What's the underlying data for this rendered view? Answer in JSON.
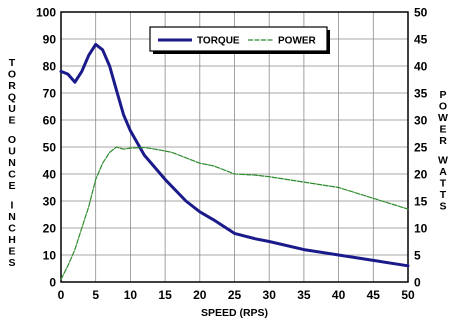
{
  "chart_data": {
    "type": "line",
    "title": "",
    "xlabel": "SPEED (RPS)",
    "ylabel_left": "TORQUE OUNCE INCHES",
    "ylabel_right": "POWER WATTS",
    "xlim": [
      0,
      50
    ],
    "ylim_left": [
      0,
      100
    ],
    "ylim_right": [
      0,
      50
    ],
    "x_ticks": [
      0,
      5,
      10,
      15,
      20,
      25,
      30,
      35,
      40,
      45,
      50
    ],
    "y_left_ticks": [
      0,
      10,
      20,
      30,
      40,
      50,
      60,
      70,
      80,
      90,
      100
    ],
    "y_right_ticks": [
      0,
      5,
      10,
      15,
      20,
      25,
      30,
      35,
      40,
      45,
      50
    ],
    "grid": true,
    "legend_position": "top-center",
    "series": [
      {
        "name": "TORQUE",
        "axis": "left",
        "color": "#1a1a8a",
        "style": "solid",
        "points": [
          [
            0,
            78
          ],
          [
            1,
            77
          ],
          [
            2,
            74
          ],
          [
            3,
            78
          ],
          [
            4,
            84
          ],
          [
            5,
            88
          ],
          [
            6,
            86
          ],
          [
            7,
            80
          ],
          [
            8,
            71
          ],
          [
            9,
            62
          ],
          [
            10,
            56
          ],
          [
            12,
            47
          ],
          [
            15,
            38
          ],
          [
            18,
            30
          ],
          [
            20,
            26
          ],
          [
            22,
            23
          ],
          [
            25,
            18
          ],
          [
            28,
            16
          ],
          [
            30,
            15
          ],
          [
            35,
            12
          ],
          [
            40,
            10
          ],
          [
            45,
            8
          ],
          [
            50,
            6
          ]
        ]
      },
      {
        "name": "POWER",
        "axis": "right",
        "color": "#2e8b2e",
        "style": "dashed",
        "points": [
          [
            0,
            0.5
          ],
          [
            1,
            3
          ],
          [
            2,
            6
          ],
          [
            3,
            10
          ],
          [
            4,
            14
          ],
          [
            5,
            19
          ],
          [
            6,
            22
          ],
          [
            7,
            24
          ],
          [
            8,
            25
          ],
          [
            9,
            24.6
          ],
          [
            10,
            24.8
          ],
          [
            12,
            24.9
          ],
          [
            14,
            24.5
          ],
          [
            16,
            24
          ],
          [
            18,
            23
          ],
          [
            20,
            22
          ],
          [
            22,
            21.5
          ],
          [
            25,
            20
          ],
          [
            28,
            19.8
          ],
          [
            30,
            19.5
          ],
          [
            35,
            18.5
          ],
          [
            40,
            17.5
          ],
          [
            45,
            15.5
          ],
          [
            50,
            13.5
          ]
        ]
      }
    ]
  }
}
